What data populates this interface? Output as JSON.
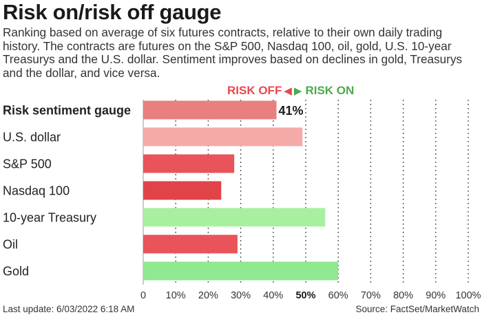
{
  "header": {
    "title": "Risk on/risk off gauge",
    "subtitle": "Ranking based on average of six futures contracts, relative to their own daily trading history. The contracts are futures on the S&P 500, Nasdaq 100, oil, gold, U.S. 10-year Treasurys and the U.S. dollar. Sentiment improves based on declines in gold, Treasurys and the dollar, and vice versa."
  },
  "direction": {
    "risk_off": "RISK OFF",
    "risk_on": "RISK ON",
    "left_arrow_icon": "left-triangle",
    "right_arrow_icon": "right-triangle"
  },
  "footer": {
    "last_update": "Last update: 6/03/2022 6:18 AM",
    "source": "Source: FactSet/MarketWatch"
  },
  "chart_data": {
    "type": "bar",
    "orientation": "horizontal",
    "categories": [
      "Risk sentiment gauge",
      "U.S. dollar",
      "S&P 500",
      "Nasdaq 100",
      "10-year Treasury",
      "Oil",
      "Gold"
    ],
    "values": [
      41,
      49,
      28,
      24,
      56,
      29,
      60
    ],
    "colors": [
      "#e88080",
      "#f4aaa8",
      "#e8545a",
      "#e04448",
      "#a8f0a0",
      "#e8545a",
      "#90e890"
    ],
    "bold_category": "Risk sentiment gauge",
    "data_labels": [
      {
        "category": "Risk sentiment gauge",
        "label": "41%"
      }
    ],
    "xlim": [
      0,
      100
    ],
    "ticks": [
      "0",
      "10%",
      "20%",
      "30%",
      "40%",
      "50%",
      "60%",
      "70%",
      "80%",
      "90%",
      "100%"
    ],
    "highlight_tick": "50%",
    "grid": "vertical dotted"
  }
}
